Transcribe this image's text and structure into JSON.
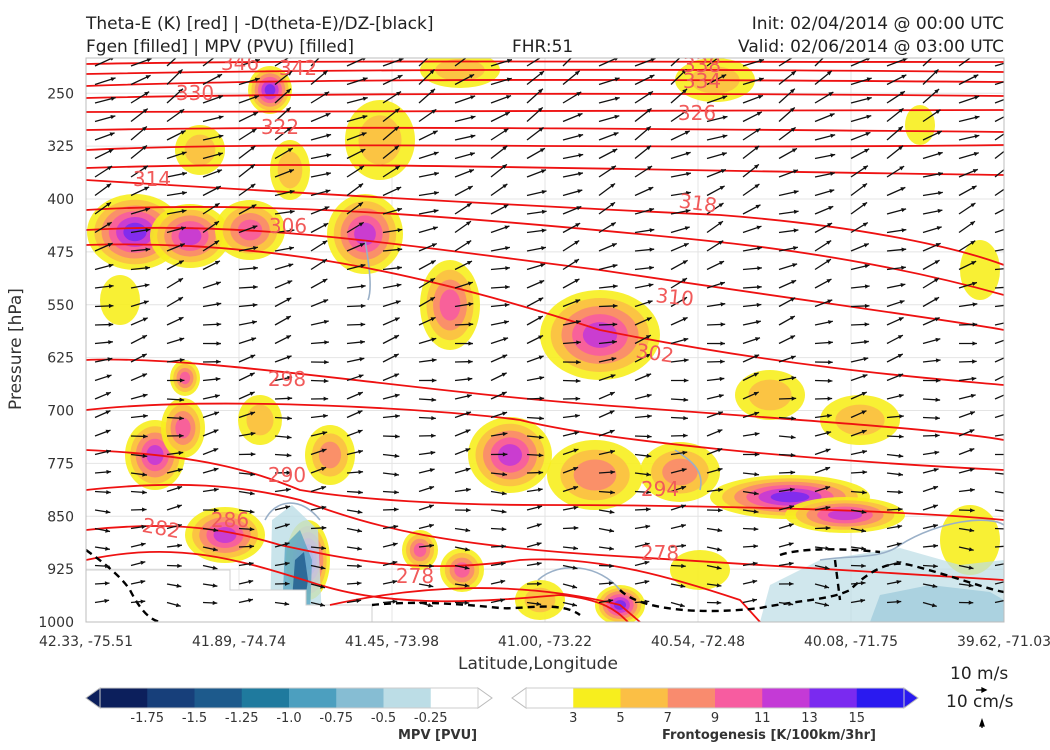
{
  "header": {
    "line1_left": "Theta-E (K) [red] | -D(theta-E)/DZ-[black]",
    "line2_left": "Fgen [filled] | MPV (PVU) [filled]",
    "fhr": "FHR:51",
    "init": "Init: 02/04/2014 @ 00:00 UTC",
    "valid": "Valid: 02/06/2014 @ 03:00 UTC"
  },
  "colors": {
    "theta_e": "#ee1111",
    "mpv_contour": "#9ab0c8",
    "wind_arrow": "#111111"
  },
  "chart_data": {
    "type": "cross-section",
    "xlabel": "Latitude,Longitude",
    "ylabel": "Pressure [hPa]",
    "x_ticks": [
      "42.33, -75.51",
      "41.89, -74.74",
      "41.45, -73.98",
      "41.00, -73.22",
      "40.54, -72.48",
      "40.08, -71.75",
      "39.62, -71.03"
    ],
    "y_ticks": [
      250,
      325,
      400,
      475,
      550,
      625,
      700,
      775,
      850,
      925,
      1000
    ],
    "ylim": [
      1000,
      200
    ],
    "grid": true,
    "theta_e_labels": [
      "346",
      "342",
      "338",
      "334",
      "330",
      "326",
      "322",
      "318",
      "314",
      "310",
      "306",
      "302",
      "298",
      "294",
      "290",
      "286",
      "282",
      "278",
      "278"
    ],
    "wind_reference": {
      "horizontal": "10 m/s",
      "vertical": "10 cm/s"
    },
    "mpv_colorbar": {
      "label": "MPV [PVU]",
      "ticks": [
        "-1.75",
        "-1.5",
        "-1.25",
        "-1.0",
        "-0.75",
        "-0.5",
        "-0.25"
      ],
      "colors": [
        "#0c1f5c",
        "#173f7a",
        "#1d5a8c",
        "#1f7a9e",
        "#4c9fbf",
        "#86bdd3",
        "#bcdde6",
        "#ffffff"
      ]
    },
    "fgen_colorbar": {
      "label": "Frontogenesis [K/100km/3hr]",
      "ticks": [
        "3",
        "5",
        "7",
        "9",
        "11",
        "13",
        "15"
      ],
      "colors": [
        "#ffffff",
        "#f7ee1e",
        "#fbbf45",
        "#f98b6e",
        "#f75ca0",
        "#c43ad6",
        "#7a2af0",
        "#2a1af0"
      ]
    }
  }
}
